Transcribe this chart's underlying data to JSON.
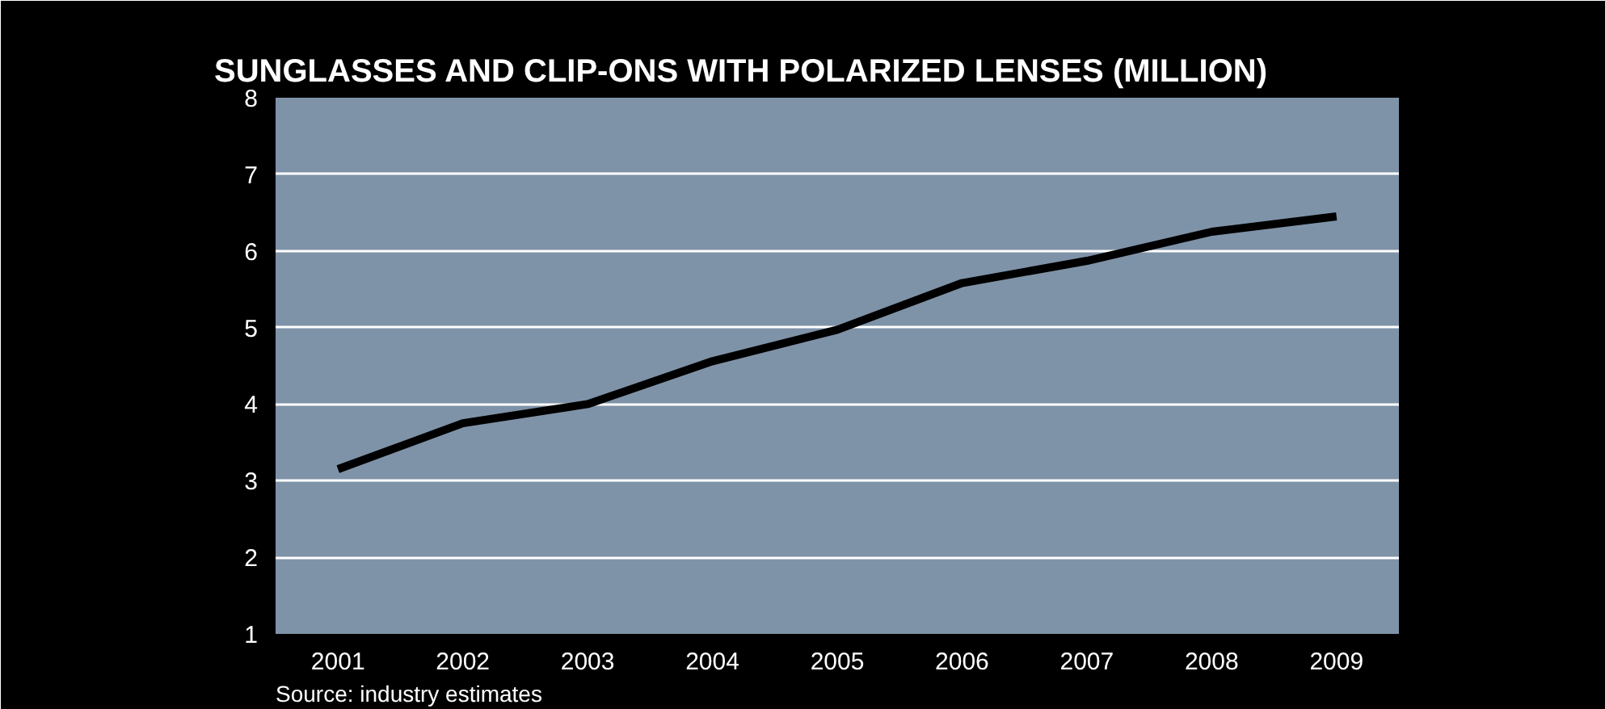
{
  "chart_data": {
    "type": "line",
    "title": "SUNGLASSES AND CLIP-ONS WITH POLARIZED LENSES (MILLION)",
    "categories": [
      "2001",
      "2002",
      "2003",
      "2004",
      "2005",
      "2006",
      "2007",
      "2008",
      "2009"
    ],
    "series": [
      {
        "color": "#000000",
        "values": [
          3.15,
          3.75,
          4.0,
          4.56,
          4.97,
          5.58,
          5.87,
          6.25,
          6.45
        ]
      }
    ],
    "ylim": [
      1,
      8
    ],
    "yticks": [
      1,
      2,
      3,
      4,
      5,
      6,
      7,
      8
    ],
    "grid": "y",
    "marker": "none",
    "line_style": "solid",
    "annotations": [
      "Source: industry estimates"
    ]
  }
}
